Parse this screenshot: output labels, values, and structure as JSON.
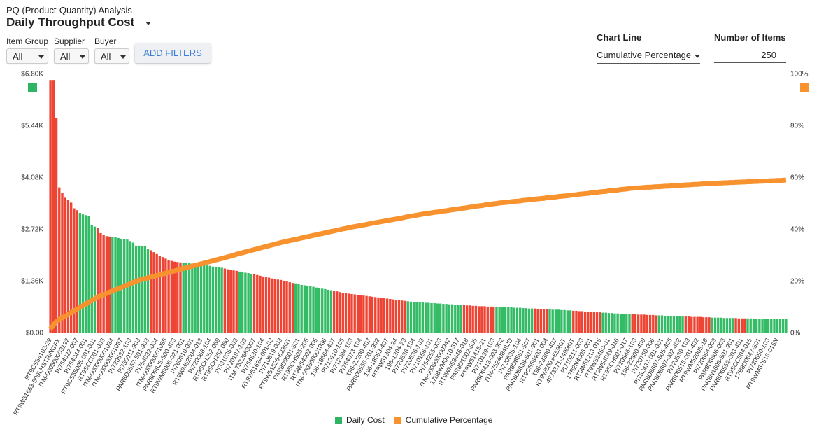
{
  "report": {
    "name": "PQ (Product-Quantity) Analysis"
  },
  "filters": [
    {
      "label": "Item Group",
      "value": "All"
    },
    {
      "label": "Supplier",
      "value": "All"
    },
    {
      "label": "Buyer",
      "value": "All"
    }
  ],
  "add_filters": "ADD FILTERS",
  "controls": {
    "chart_line_label": "Chart Line",
    "chart_line": "Cumulative Percentage",
    "items_label": "Number of Items",
    "items": 250
  },
  "chart_data": {
    "type": "bar",
    "title": "Daily Throughput Cost",
    "categories": [
      "RT9CS54102-29",
      null,
      null,
      "RT9W51663-509LHSTRINGFX",
      null,
      null,
      "ITM-000500003192",
      null,
      null,
      "PI754022-007",
      null,
      null,
      "PI754044-001",
      null,
      null,
      "RT9CS55005-001-001",
      null,
      null,
      "RT9SCC001-003",
      null,
      null,
      "ITM-000500001034",
      null,
      null,
      "ITM-000500001037",
      null,
      null,
      "PI720532-103",
      null,
      null,
      "PI750011-903",
      null,
      null,
      "PAR8D9557-501-903",
      null,
      null,
      "PI754032-004",
      null,
      null,
      "ITM-000500001035",
      null,
      null,
      "PAR8D9625-500-403",
      null,
      null,
      "RT9WM5006-021-001",
      null,
      null,
      "PI760310-001",
      null,
      null,
      "RT9WM52004-013",
      null,
      null,
      "PI720068-104",
      null,
      null,
      "RT9SCH252-069",
      null,
      null,
      "RT9SCH252-060",
      null,
      null,
      "PI331035-003",
      null,
      null,
      "PI720187-103",
      null,
      null,
      "ITM-7522683007",
      null,
      null,
      "PI754530-104",
      null,
      null,
      "RT9W51624-001-02",
      null,
      null,
      "PI710819-003",
      null,
      null,
      "RT9W51526-523KIT",
      null,
      null,
      "PAR8D9501-501",
      null,
      null,
      "RT9SCH505-205",
      null,
      null,
      "RT9W54002-005",
      null,
      null,
      "ITM-000500001036",
      null,
      null,
      "196-18664-407",
      null,
      null,
      "PI710110-105",
      null,
      null,
      "PI712094-103",
      null,
      null,
      "PI754073-104",
      null,
      null,
      "196-22200-407",
      null,
      null,
      "PAR8D9556-001-902",
      null,
      null,
      "196-18053-407",
      null,
      null,
      "RT9W51304-24",
      null,
      null,
      "196-1304-23",
      null,
      null,
      "PI720536-104",
      null,
      null,
      "PI720536-103",
      null,
      null,
      "PI710156-101",
      null,
      null,
      "PI754255-003",
      null,
      null,
      "ITM-000500000942",
      null,
      null,
      "17B8WM0410-517",
      null,
      null,
      "RT9WM53446-018",
      null,
      null,
      "PAR8D1002-505",
      null,
      null,
      "RT9W51415-21",
      null,
      null,
      "PI710139-103",
      null,
      null,
      "PAR8D8413-003-902",
      null,
      null,
      "ITM-752408482D",
      null,
      null,
      "PI720535-104",
      null,
      null,
      "PAR8D8551-507",
      null,
      null,
      "PAR8D8638-501-901",
      null,
      null,
      "RT9CS56403-004",
      null,
      null,
      "196-23300-407",
      null,
      null,
      "RT9W5003-559KIT",
      null,
      null,
      "4F73371-1490KIT",
      null,
      null,
      "PI710211-003",
      null,
      null,
      "17B2N4005-001",
      null,
      null,
      "RT9W51213-015",
      null,
      null,
      "RT9W52450-01",
      null,
      null,
      "RT9W54049-016",
      null,
      null,
      "RT9SCH501-017",
      null,
      null,
      "PI720546-103",
      null,
      null,
      "196-22300-409",
      null,
      null,
      "PI720750-006",
      null,
      null,
      "PI752437-001-001",
      null,
      null,
      "PAR8D8607-505-405",
      null,
      null,
      "PAR8D8607-002-402",
      null,
      null,
      "PI720530-103",
      null,
      null,
      "PAR8D8515-001-402",
      null,
      null,
      "RT9WM52005-18",
      null,
      null,
      "PI720854-003",
      null,
      null,
      "PAR8D8606-003",
      null,
      null,
      "PAR8N1603-501-901",
      null,
      null,
      "PAR8D8552-003-401",
      null,
      null,
      "RT9SCC504-015",
      null,
      null,
      "17B8D0547-501",
      null,
      null,
      "PI720550-103",
      null,
      null,
      "RT9WM67516-015N",
      null,
      null,
      null
    ],
    "series": [
      {
        "name": "Daily Cost",
        "color": "#2eb563",
        "bar_colors": [
          "#e43",
          "#e43",
          "#e43",
          "#e43",
          "#e43",
          "#e43",
          "#e43",
          "#e43",
          "#e43",
          "#e43",
          "#3b6",
          "#3b6",
          "#3b6",
          "#3b6",
          "#3b6",
          "#3b6",
          "#e43",
          "#e43",
          "#e43",
          "#e43",
          "#e43",
          "#3b6",
          "#3b6",
          "#3b6",
          "#3b6",
          "#3b6",
          "#3b6",
          "#3b6",
          "#3b6",
          "#3b6",
          "#3b6",
          "#3b6",
          "#3b6",
          "#3b6",
          "#e43",
          "#e43",
          "#e43",
          "#e43",
          "#e43",
          "#e43",
          "#e43",
          "#e43",
          "#e43",
          "#e43",
          "#e43",
          "#3b6",
          "#3b6",
          "#3b6",
          "#3b6",
          "#3b6",
          "#3b6",
          "#3b6",
          "#3b6",
          "#3b6",
          "#3b6",
          "#3b6",
          "#3b6",
          "#3b6",
          "#3b6",
          "#e43",
          "#e43",
          "#e43",
          "#e43",
          "#e43",
          "#3b6",
          "#3b6",
          "#3b6",
          "#3b6",
          "#3b6",
          "#e43",
          "#e43",
          "#e43",
          "#e43",
          "#e43",
          "#e43",
          "#e43",
          "#e43",
          "#e43",
          "#e43",
          "#e43",
          "#e43",
          "#e43",
          "#e43",
          "#3b6",
          "#3b6",
          "#3b6",
          "#3b6",
          "#3b6",
          "#3b6",
          "#3b6",
          "#3b6",
          "#3b6",
          "#3b6",
          "#3b6",
          "#3b6",
          "#3b6",
          "#e43",
          "#e43",
          "#e43",
          "#e43",
          "#e43",
          "#e43",
          "#e43",
          "#e43",
          "#e43",
          "#e43",
          "#e43",
          "#e43",
          "#e43",
          "#e43",
          "#e43",
          "#e43",
          "#e43",
          "#e43",
          "#e43",
          "#e43",
          "#e43",
          "#e43",
          "#e43",
          "#e43",
          "#e43",
          "#3b6",
          "#3b6",
          "#3b6",
          "#3b6",
          "#3b6",
          "#3b6",
          "#3b6",
          "#3b6",
          "#3b6",
          "#3b6",
          "#3b6",
          "#3b6",
          "#3b6",
          "#3b6",
          "#3b6",
          "#3b6",
          "#3b6",
          "#3b6",
          "#3b6",
          "#e43",
          "#e43",
          "#e43",
          "#e43",
          "#e43",
          "#e43",
          "#e43",
          "#e43",
          "#e43",
          "#e43",
          "#e43",
          "#3b6",
          "#3b6",
          "#3b6",
          "#3b6",
          "#3b6",
          "#3b6",
          "#3b6",
          "#3b6",
          "#3b6",
          "#3b6",
          "#3b6",
          "#3b6",
          "#3b6",
          "#e43",
          "#e43",
          "#e43",
          "#e43",
          "#e43",
          "#3b6",
          "#3b6",
          "#3b6",
          "#3b6",
          "#3b6",
          "#3b6",
          "#3b6",
          "#3b6",
          "#e43",
          "#e43",
          "#e43",
          "#e43",
          "#e43",
          "#e43",
          "#e43",
          "#e43",
          "#e43",
          "#e43",
          "#3b6",
          "#3b6",
          "#3b6",
          "#3b6",
          "#3b6",
          "#3b6",
          "#3b6",
          "#3b6",
          "#3b6",
          "#3b6",
          "#e43",
          "#e43",
          "#e43",
          "#e43",
          "#e43",
          "#e43",
          "#e43",
          "#e43",
          "#e43",
          "#3b6",
          "#3b6",
          "#3b6",
          "#3b6",
          "#3b6",
          "#3b6",
          "#3b6",
          "#3b6",
          "#3b6",
          "#e43",
          "#e43",
          "#e43",
          "#e43",
          "#e43",
          "#e43",
          "#e43",
          "#e43",
          "#e43",
          "#3b6",
          "#3b6",
          "#3b6",
          "#3b6",
          "#3b6",
          "#3b6",
          "#3b6",
          "#3b6",
          "#e43",
          "#e43",
          "#e43",
          "#e43",
          "#3b6",
          "#3b6",
          "#3b6",
          "#3b6",
          "#3b6",
          "#3b6",
          "#3b6",
          "#3b6",
          "#3b6",
          "#3b6",
          "#3b6",
          "#3b6",
          "#3b6",
          "#3b6"
        ],
        "values": [
          6650,
          6650,
          5650,
          3830,
          3680,
          3560,
          3510,
          3430,
          3280,
          3230,
          3160,
          3120,
          3100,
          3080,
          2830,
          2800,
          2760,
          2630,
          2580,
          2550,
          2540,
          2530,
          2520,
          2500,
          2480,
          2470,
          2460,
          2420,
          2380,
          2300,
          2300,
          2290,
          2280,
          2220,
          2180,
          2130,
          2080,
          2040,
          2000,
          1960,
          1930,
          1900,
          1880,
          1870,
          1860,
          1850,
          1850,
          1840,
          1830,
          1820,
          1810,
          1800,
          1790,
          1780,
          1770,
          1750,
          1740,
          1730,
          1720,
          1700,
          1680,
          1660,
          1650,
          1640,
          1620,
          1600,
          1590,
          1580,
          1560,
          1550,
          1530,
          1510,
          1490,
          1480,
          1460,
          1440,
          1420,
          1410,
          1400,
          1380,
          1360,
          1340,
          1320,
          1310,
          1290,
          1270,
          1260,
          1250,
          1240,
          1220,
          1200,
          1190,
          1170,
          1160,
          1140,
          1130,
          1110,
          1100,
          1080,
          1060,
          1050,
          1040,
          1030,
          1020,
          1010,
          1000,
          990,
          980,
          970,
          960,
          950,
          940,
          930,
          920,
          910,
          900,
          890,
          880,
          870,
          860,
          850,
          840,
          830,
          820,
          820,
          810,
          810,
          800,
          800,
          790,
          790,
          780,
          780,
          770,
          770,
          760,
          760,
          750,
          750,
          740,
          740,
          730,
          730,
          720,
          720,
          710,
          710,
          710,
          700,
          700,
          700,
          700,
          690,
          690,
          690,
          680,
          680,
          670,
          670,
          670,
          660,
          660,
          650,
          650,
          650,
          640,
          640,
          640,
          630,
          630,
          620,
          620,
          620,
          610,
          610,
          600,
          600,
          590,
          590,
          580,
          580,
          570,
          570,
          560,
          560,
          550,
          550,
          540,
          540,
          530,
          530,
          520,
          520,
          510,
          510,
          510,
          500,
          500,
          500,
          490,
          490,
          490,
          480,
          480,
          480,
          470,
          470,
          470,
          460,
          460,
          460,
          450,
          450,
          450,
          440,
          440,
          440,
          430,
          430,
          430,
          430,
          420,
          420,
          420,
          410,
          410,
          410,
          410,
          400,
          400,
          400,
          400,
          400,
          390,
          390,
          390,
          390,
          390,
          380,
          380,
          380,
          380,
          380,
          380,
          370,
          370,
          370,
          370,
          370,
          370
        ]
      },
      {
        "name": "Cumulative Percentage",
        "type": "line",
        "axis": "y2",
        "color": "#f7922f",
        "values": [
          1.6,
          3.2,
          4.5,
          5.3,
          6.0,
          6.6,
          7.3,
          8.0,
          8.7,
          9.3,
          10.0,
          10.7,
          11.3,
          12.0,
          12.7,
          13.3,
          14.0,
          14.5,
          14.9,
          15.4,
          15.9,
          16.3,
          16.8,
          17.2,
          17.7,
          18.2,
          18.6,
          19.1,
          19.6,
          20.0,
          20.5,
          20.8,
          21.1,
          21.4,
          21.7,
          22.0,
          22.3,
          22.6,
          22.9,
          23.2,
          23.5,
          23.8,
          24.1,
          24.4,
          24.7,
          25.0,
          25.3,
          25.6,
          25.9,
          26.2,
          26.5,
          26.8,
          27.1,
          27.4,
          27.7,
          28.0,
          28.3,
          28.6,
          28.9,
          29.2,
          29.5,
          29.8,
          30.1,
          30.5,
          30.8,
          31.1,
          31.4,
          31.7,
          32.0,
          32.3,
          32.6,
          32.9,
          33.2,
          33.5,
          33.8,
          34.1,
          34.4,
          34.7,
          35.0,
          35.3,
          35.5,
          35.8,
          36.0,
          36.3,
          36.5,
          36.8,
          37.0,
          37.3,
          37.5,
          37.8,
          38.0,
          38.3,
          38.5,
          38.8,
          39.0,
          39.3,
          39.5,
          39.8,
          40.0,
          40.3,
          40.5,
          40.8,
          41.0,
          41.2,
          41.4,
          41.6,
          41.8,
          42.0,
          42.3,
          42.5,
          42.7,
          42.9,
          43.1,
          43.3,
          43.5,
          43.7,
          43.9,
          44.1,
          44.3,
          44.5,
          44.8,
          45.0,
          45.2,
          45.4,
          45.6,
          45.8,
          46.0,
          46.2,
          46.3,
          46.5,
          46.7,
          46.8,
          47.0,
          47.2,
          47.3,
          47.5,
          47.7,
          47.8,
          48.0,
          48.2,
          48.3,
          48.5,
          48.7,
          48.8,
          49.0,
          49.2,
          49.3,
          49.5,
          49.7,
          49.8,
          50.0,
          50.1,
          50.3,
          50.4,
          50.5,
          50.6,
          50.8,
          50.9,
          51.0,
          51.1,
          51.3,
          51.4,
          51.5,
          51.6,
          51.8,
          51.9,
          52.0,
          52.1,
          52.3,
          52.4,
          52.5,
          52.6,
          52.8,
          52.9,
          53.0,
          53.1,
          53.3,
          53.4,
          53.5,
          53.7,
          53.8,
          53.9,
          54.0,
          54.2,
          54.3,
          54.4,
          54.6,
          54.7,
          54.8,
          55.0,
          55.1,
          55.2,
          55.3,
          55.5,
          55.6,
          55.7,
          55.9,
          56.0,
          56.1,
          56.1,
          56.2,
          56.3,
          56.4,
          56.4,
          56.5,
          56.6,
          56.6,
          56.7,
          56.8,
          56.8,
          56.9,
          57.0,
          57.1,
          57.1,
          57.2,
          57.3,
          57.3,
          57.4,
          57.5,
          57.5,
          57.6,
          57.7,
          57.7,
          57.8,
          57.9,
          57.9,
          58.0,
          58.0,
          58.1,
          58.1,
          58.2,
          58.2,
          58.3,
          58.3,
          58.4,
          58.4,
          58.5,
          58.5,
          58.6,
          58.6,
          58.7,
          58.7,
          58.8,
          58.8,
          58.9,
          58.9,
          59.0,
          59.0,
          59.1,
          59.2
        ]
      }
    ],
    "ylim": [
      0,
      6800
    ],
    "yticks": [
      {
        "value": 0,
        "label": "$0.00"
      },
      {
        "value": 1360,
        "label": "$1.36K"
      },
      {
        "value": 2720,
        "label": "$2.72K"
      },
      {
        "value": 4080,
        "label": "$4.08K"
      },
      {
        "value": 5440,
        "label": "$5.44K"
      },
      {
        "value": 6800,
        "label": "$6.80K"
      }
    ],
    "y2lim": [
      0,
      100
    ],
    "y2ticks": [
      {
        "value": 0,
        "label": "0%"
      },
      {
        "value": 20,
        "label": "20%"
      },
      {
        "value": 40,
        "label": "40%"
      },
      {
        "value": 60,
        "label": "60%"
      },
      {
        "value": 80,
        "label": "80%"
      },
      {
        "value": 100,
        "label": "100%"
      }
    ],
    "grid": false,
    "legend": "bottom"
  }
}
